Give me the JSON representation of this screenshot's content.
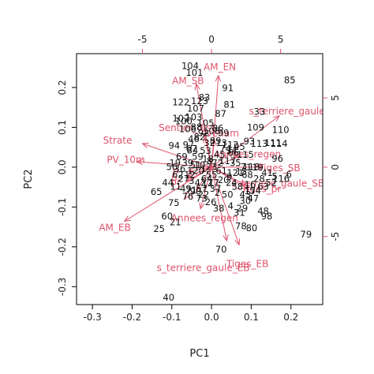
{
  "chart_data": {
    "type": "scatter",
    "subtype": "biplot",
    "title": "",
    "xlabel": "PC1",
    "ylabel": "PC2",
    "xlim": [
      -0.34,
      0.28
    ],
    "ylim": [
      -0.345,
      0.285
    ],
    "x_ticks": [
      "-0.3",
      "-0.2",
      "-0.1",
      "0.0",
      "0.1",
      "0.2"
    ],
    "x_tick_values": [
      -0.3,
      -0.2,
      -0.1,
      0.0,
      0.1,
      0.2
    ],
    "y_ticks": [
      "-0.3",
      "-0.2",
      "-0.1",
      "0.0",
      "0.1",
      "0.2"
    ],
    "y_tick_values": [
      -0.3,
      -0.2,
      -0.1,
      0.0,
      0.1,
      0.2
    ],
    "top_ticks": [
      "-5",
      "0",
      "5"
    ],
    "top_tick_values": [
      -5,
      0,
      5
    ],
    "right_ticks": [
      "5",
      "0",
      "-5"
    ],
    "right_tick_values": [
      5,
      0,
      -5
    ],
    "loading_scale": 0.0348,
    "grid": false,
    "colors": {
      "points": "#000000",
      "arrows": "#DF536B",
      "frame": "#000000"
    },
    "points": [
      {
        "label": "104",
        "x": -0.054,
        "y": 0.253
      },
      {
        "label": "101",
        "x": -0.043,
        "y": 0.236
      },
      {
        "label": "85",
        "x": 0.197,
        "y": 0.218
      },
      {
        "label": "91",
        "x": 0.041,
        "y": 0.198
      },
      {
        "label": "83",
        "x": -0.018,
        "y": 0.174
      },
      {
        "label": "122",
        "x": -0.077,
        "y": 0.162
      },
      {
        "label": "81",
        "x": 0.045,
        "y": 0.156
      },
      {
        "label": "107",
        "x": -0.04,
        "y": 0.146
      },
      {
        "label": "102",
        "x": -0.077,
        "y": 0.122
      },
      {
        "label": "87",
        "x": 0.023,
        "y": 0.133
      },
      {
        "label": "33",
        "x": 0.121,
        "y": 0.138
      },
      {
        "label": "109",
        "x": 0.111,
        "y": 0.099
      },
      {
        "label": "110",
        "x": 0.174,
        "y": 0.093
      },
      {
        "label": "86",
        "x": 0.016,
        "y": 0.097
      },
      {
        "label": "112",
        "x": 0.047,
        "y": 0.055
      },
      {
        "label": "93",
        "x": 0.095,
        "y": 0.064
      },
      {
        "label": "113",
        "x": 0.12,
        "y": 0.058
      },
      {
        "label": "114",
        "x": 0.17,
        "y": 0.058
      },
      {
        "label": "94",
        "x": -0.094,
        "y": 0.053
      },
      {
        "label": "84",
        "x": -0.048,
        "y": 0.041
      },
      {
        "label": "96",
        "x": 0.166,
        "y": 0.021
      },
      {
        "label": "119",
        "x": 0.109,
        "y": -0.001
      },
      {
        "label": "5",
        "x": 0.159,
        "y": -0.024
      },
      {
        "label": "6",
        "x": 0.195,
        "y": -0.019
      },
      {
        "label": "65",
        "x": -0.139,
        "y": -0.063
      },
      {
        "label": "75",
        "x": -0.095,
        "y": -0.09
      },
      {
        "label": "26",
        "x": -0.002,
        "y": -0.088
      },
      {
        "label": "38",
        "x": 0.018,
        "y": -0.104
      },
      {
        "label": "4",
        "x": 0.048,
        "y": -0.098
      },
      {
        "label": "29",
        "x": 0.077,
        "y": -0.104
      },
      {
        "label": "31",
        "x": 0.07,
        "y": -0.115
      },
      {
        "label": "48",
        "x": 0.13,
        "y": -0.111
      },
      {
        "label": "98",
        "x": 0.139,
        "y": -0.124
      },
      {
        "label": "60",
        "x": -0.112,
        "y": -0.124
      },
      {
        "label": "21",
        "x": -0.091,
        "y": -0.139
      },
      {
        "label": "25",
        "x": -0.132,
        "y": -0.156
      },
      {
        "label": "78",
        "x": 0.074,
        "y": -0.149
      },
      {
        "label": "80",
        "x": 0.101,
        "y": -0.154
      },
      {
        "label": "79",
        "x": 0.238,
        "y": -0.17
      },
      {
        "label": "70",
        "x": 0.024,
        "y": -0.207
      },
      {
        "label": "40",
        "x": -0.108,
        "y": -0.328
      },
      {
        "label": "71",
        "x": -0.051,
        "y": -0.059
      },
      {
        "label": "90",
        "x": -0.04,
        "y": -0.062
      },
      {
        "label": "10",
        "x": -0.03,
        "y": 0.005
      },
      {
        "label": "12",
        "x": -0.055,
        "y": -0.02
      },
      {
        "label": "15",
        "x": 0.075,
        "y": -0.012
      },
      {
        "label": "16",
        "x": 0.097,
        "y": -0.045
      },
      {
        "label": "17",
        "x": 0.097,
        "y": -0.061
      },
      {
        "label": "18",
        "x": -0.009,
        "y": 0.02
      },
      {
        "label": "19",
        "x": -0.092,
        "y": 0.01
      },
      {
        "label": "20",
        "x": 0.03,
        "y": -0.033
      },
      {
        "label": "22",
        "x": -0.02,
        "y": -0.07
      },
      {
        "label": "24",
        "x": 0.05,
        "y": -0.04
      },
      {
        "label": "27",
        "x": -0.07,
        "y": -0.03
      },
      {
        "label": "28",
        "x": 0.12,
        "y": -0.03
      },
      {
        "label": "32",
        "x": -0.005,
        "y": 0.06
      },
      {
        "label": "35",
        "x": 0.06,
        "y": 0.01
      },
      {
        "label": "36",
        "x": -0.08,
        "y": -0.005
      },
      {
        "label": "37",
        "x": 0.01,
        "y": -0.055
      },
      {
        "label": "39",
        "x": -0.06,
        "y": 0.01
      },
      {
        "label": "41",
        "x": 0.14,
        "y": -0.015
      },
      {
        "label": "42",
        "x": -0.028,
        "y": -0.04
      },
      {
        "label": "43",
        "x": 0.085,
        "y": -0.07
      },
      {
        "label": "44",
        "x": -0.11,
        "y": -0.04
      },
      {
        "label": "45",
        "x": 0.02,
        "y": 0.03
      },
      {
        "label": "46",
        "x": -0.045,
        "y": 0.07
      },
      {
        "label": "47",
        "x": 0.105,
        "y": -0.08
      },
      {
        "label": "49",
        "x": -0.065,
        "y": -0.055
      },
      {
        "label": "50",
        "x": 0.04,
        "y": -0.07
      },
      {
        "label": "52",
        "x": 0.15,
        "y": -0.04
      },
      {
        "label": "53",
        "x": -0.015,
        "y": 0.04
      },
      {
        "label": "55",
        "x": 0.0,
        "y": -0.02
      },
      {
        "label": "56",
        "x": -0.1,
        "y": 0.0
      },
      {
        "label": "58",
        "x": 0.065,
        "y": -0.05
      },
      {
        "label": "59",
        "x": -0.035,
        "y": 0.025
      },
      {
        "label": "61",
        "x": 0.025,
        "y": -0.01
      },
      {
        "label": "62",
        "x": -0.085,
        "y": -0.02
      },
      {
        "label": "63",
        "x": 0.13,
        "y": -0.05
      },
      {
        "label": "64",
        "x": -0.012,
        "y": -0.03
      },
      {
        "label": "66",
        "x": 0.055,
        "y": 0.035
      },
      {
        "label": "67",
        "x": -0.05,
        "y": 0.045
      },
      {
        "label": "68",
        "x": 0.09,
        "y": -0.02
      },
      {
        "label": "69",
        "x": -0.075,
        "y": 0.025
      },
      {
        "label": "72",
        "x": 0.015,
        "y": 0.01
      },
      {
        "label": "73",
        "x": -0.025,
        "y": -0.08
      },
      {
        "label": "74",
        "x": 0.035,
        "y": 0.045
      },
      {
        "label": "76",
        "x": -0.06,
        "y": -0.075
      },
      {
        "label": "77",
        "x": 0.005,
        "y": -0.04
      },
      {
        "label": "82",
        "x": -0.03,
        "y": 0.075
      },
      {
        "label": "88",
        "x": -0.038,
        "y": 0.1
      },
      {
        "label": "89",
        "x": 0.01,
        "y": 0.065
      },
      {
        "label": "92",
        "x": -0.02,
        "y": 0.085
      },
      {
        "label": "95",
        "x": 0.07,
        "y": 0.05
      },
      {
        "label": "97",
        "x": -0.058,
        "y": 0.055
      },
      {
        "label": "99",
        "x": 0.03,
        "y": 0.085
      },
      {
        "label": "100",
        "x": -0.07,
        "y": 0.115
      },
      {
        "label": "103",
        "x": -0.045,
        "y": 0.125
      },
      {
        "label": "105",
        "x": -0.015,
        "y": 0.11
      },
      {
        "label": "106",
        "x": -0.06,
        "y": 0.095
      },
      {
        "label": "108",
        "x": 0.0,
        "y": 0.09
      },
      {
        "label": "111",
        "x": 0.155,
        "y": 0.06
      },
      {
        "label": "115",
        "x": 0.085,
        "y": 0.03
      },
      {
        "label": "116",
        "x": 0.175,
        "y": -0.03
      },
      {
        "label": "117",
        "x": 0.04,
        "y": 0.015
      },
      {
        "label": "118",
        "x": 0.1,
        "y": 0.0
      },
      {
        "label": "120",
        "x": -0.04,
        "y": -0.01
      },
      {
        "label": "121",
        "x": 0.06,
        "y": -0.015
      },
      {
        "label": "123",
        "x": -0.03,
        "y": 0.165
      },
      {
        "label": "1",
        "x": -0.02,
        "y": -0.005
      },
      {
        "label": "2",
        "x": 0.015,
        "y": -0.065
      },
      {
        "label": "3",
        "x": -0.05,
        "y": -0.035
      },
      {
        "label": "7",
        "x": 0.08,
        "y": 0.0
      },
      {
        "label": "8",
        "x": -0.005,
        "y": 0.015
      },
      {
        "label": "9",
        "x": 0.045,
        "y": -0.025
      },
      {
        "label": "11",
        "x": -0.09,
        "y": -0.05
      },
      {
        "label": "13",
        "x": 0.025,
        "y": 0.06
      },
      {
        "label": "14",
        "x": -0.01,
        "y": -0.045
      },
      {
        "label": "23",
        "x": 0.0,
        "y": 0.0
      },
      {
        "label": "30",
        "x": 0.085,
        "y": -0.085
      },
      {
        "label": "34",
        "x": 0.05,
        "y": 0.04
      },
      {
        "label": "51",
        "x": -0.04,
        "y": 0.005
      },
      {
        "label": "54",
        "x": 0.11,
        "y": -0.06
      },
      {
        "label": "57",
        "x": -0.025,
        "y": -0.055
      }
    ],
    "loadings": [
      {
        "label": "AM_EN",
        "x": 0.5,
        "y": 6.6,
        "tx": 0.6,
        "ty": 7.2
      },
      {
        "label": "AM_SB",
        "x": -1.1,
        "y": 6.0,
        "tx": -1.7,
        "ty": 6.2
      },
      {
        "label": "s_terriere_gaule_EN",
        "x": 4.9,
        "y": 3.7,
        "tx": 6.1,
        "ty": 4.0
      },
      {
        "label": "Sentier_dist",
        "x": -0.5,
        "y": 2.2,
        "tx": -1.8,
        "ty": 2.8
      },
      {
        "label": "Avenam",
        "x": 0.2,
        "y": 2.0,
        "tx": 0.6,
        "ty": 2.4
      },
      {
        "label": "Strate",
        "x": -5.0,
        "y": 1.7,
        "tx": -6.8,
        "ty": 1.9
      },
      {
        "label": "PV_10m",
        "x": -5.4,
        "y": 0.4,
        "tx": -6.2,
        "ty": 0.5
      },
      {
        "label": "Annees_regen",
        "x": 2.1,
        "y": 0.8,
        "tx": 2.6,
        "ty": 0.9
      },
      {
        "label": "Tiges_SB",
        "x": 3.7,
        "y": 0.0,
        "tx": 4.9,
        "ty": -0.1
      },
      {
        "label": "s_terriere_gaule_SB",
        "x": 2.5,
        "y": -1.3,
        "tx": 4.8,
        "ty": -1.2
      },
      {
        "label": "Tiges_pr",
        "x": 2.7,
        "y": -1.6,
        "tx": 3.6,
        "ty": -1.6
      },
      {
        "label": "AM_EB",
        "x": -6.3,
        "y": -3.9,
        "tx": -7.0,
        "ty": -4.4
      },
      {
        "label": "Annees_regen",
        "x": -0.8,
        "y": -3.0,
        "tx": -0.5,
        "ty": -3.7
      },
      {
        "label": "pr",
        "x": -1.1,
        "y": -1.7,
        "tx": -1.6,
        "ty": -2.0
      },
      {
        "label": "s_terriere_gaule_EB",
        "x": 1.1,
        "y": -5.3,
        "tx": -0.6,
        "ty": -7.3
      },
      {
        "label": "Tiges_EB",
        "x": 2.0,
        "y": -5.6,
        "tx": 2.6,
        "ty": -7.0
      },
      {
        "label": "p",
        "x": -1.7,
        "y": -0.3,
        "tx": -2.6,
        "ty": -0.3
      },
      {
        "label": "p",
        "x": -1.8,
        "y": -0.7,
        "tx": -2.7,
        "ty": -0.8
      },
      {
        "label": "pr",
        "x": -1.8,
        "y": -1.0,
        "tx": -2.6,
        "ty": -1.1
      }
    ]
  }
}
